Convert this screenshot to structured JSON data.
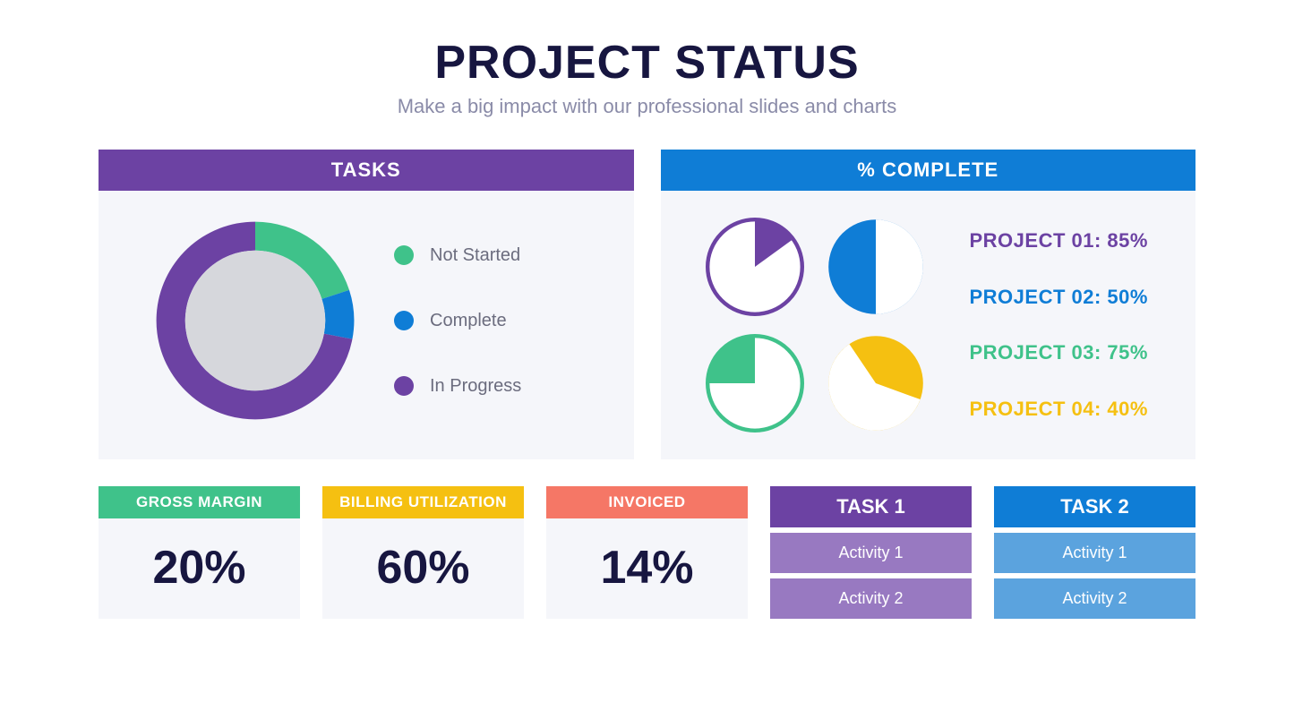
{
  "header": {
    "title": "PROJECT STATUS",
    "subtitle": "Make a big impact with our professional slides and charts",
    "title_color": "#171640",
    "subtitle_color": "#8a8ba8"
  },
  "colors": {
    "purple": "#6c42a3",
    "blue": "#0f7dd6",
    "green": "#3fc28a",
    "yellow": "#f5c011",
    "coral": "#f57766",
    "purple_light": "#9879c1",
    "blue_light": "#5ba3de",
    "panel_bg": "#f5f6fa",
    "gray_ring_bg": "#d6d7dc",
    "text_dark": "#171640",
    "text_gray": "#6b6c7e"
  },
  "tasks_panel": {
    "header": "TASKS",
    "header_bg": "#6c42a3",
    "donut": {
      "type": "donut",
      "segments": [
        {
          "label": "Not Started",
          "value": 20,
          "color": "#3fc28a"
        },
        {
          "label": "Complete",
          "value": 8,
          "color": "#0f7dd6"
        },
        {
          "label": "In Progress",
          "value": 72,
          "color": "#6c42a3"
        }
      ],
      "inner_fill": "#d6d7dc",
      "ring_width": 24
    },
    "legend": [
      {
        "label": "Not Started",
        "color": "#3fc28a"
      },
      {
        "label": "Complete",
        "color": "#0f7dd6"
      },
      {
        "label": "In Progress",
        "color": "#6c42a3"
      }
    ]
  },
  "complete_panel": {
    "header": "% COMPLETE",
    "header_bg": "#0f7dd6",
    "projects": [
      {
        "label": "PROJECT 01: 85%",
        "percent": 85,
        "color": "#6c42a3",
        "style": "outline"
      },
      {
        "label": "PROJECT 02: 50%",
        "percent": 50,
        "color": "#0f7dd6",
        "style": "fill"
      },
      {
        "label": "PROJECT 03: 75%",
        "percent": 75,
        "color": "#3fc28a",
        "style": "outline"
      },
      {
        "label": "PROJECT 04: 40%",
        "percent": 40,
        "color": "#f5c011",
        "style": "fill"
      }
    ]
  },
  "metrics": [
    {
      "label": "GROSS MARGIN",
      "value": "20%",
      "color": "#3fc28a"
    },
    {
      "label": "BILLING UTILIZATION",
      "value": "60%",
      "color": "#f5c011"
    },
    {
      "label": "INVOICED",
      "value": "14%",
      "color": "#f57766"
    }
  ],
  "task_columns": [
    {
      "header": "TASK 1",
      "header_bg": "#6c42a3",
      "activity_bg": "#9879c1",
      "activities": [
        "Activity 1",
        "Activity 2"
      ]
    },
    {
      "header": "TASK 2",
      "header_bg": "#0f7dd6",
      "activity_bg": "#5ba3de",
      "activities": [
        "Activity 1",
        "Activity 2"
      ]
    }
  ]
}
